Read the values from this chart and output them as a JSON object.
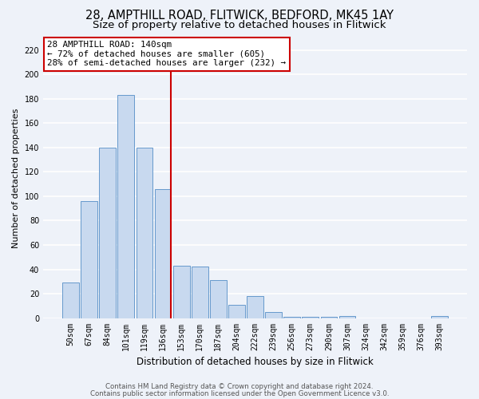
{
  "title": "28, AMPTHILL ROAD, FLITWICK, BEDFORD, MK45 1AY",
  "subtitle": "Size of property relative to detached houses in Flitwick",
  "xlabel": "Distribution of detached houses by size in Flitwick",
  "ylabel": "Number of detached properties",
  "bar_labels": [
    "50sqm",
    "67sqm",
    "84sqm",
    "101sqm",
    "119sqm",
    "136sqm",
    "153sqm",
    "170sqm",
    "187sqm",
    "204sqm",
    "222sqm",
    "239sqm",
    "256sqm",
    "273sqm",
    "290sqm",
    "307sqm",
    "324sqm",
    "342sqm",
    "359sqm",
    "376sqm",
    "393sqm"
  ],
  "bar_values": [
    29,
    96,
    140,
    183,
    140,
    106,
    43,
    42,
    31,
    11,
    18,
    5,
    1,
    1,
    1,
    2,
    0,
    0,
    0,
    0,
    2
  ],
  "bar_color": "#c8d9ef",
  "bar_edge_color": "#6699cc",
  "red_line_color": "#cc0000",
  "red_line_index": 5,
  "annotation_title": "28 AMPTHILL ROAD: 140sqm",
  "annotation_line1": "← 72% of detached houses are smaller (605)",
  "annotation_line2": "28% of semi-detached houses are larger (232) →",
  "annotation_box_color": "#ffffff",
  "annotation_box_edge": "#cc0000",
  "ylim": [
    0,
    230
  ],
  "yticks": [
    0,
    20,
    40,
    60,
    80,
    100,
    120,
    140,
    160,
    180,
    200,
    220
  ],
  "bg_color": "#eef2f9",
  "grid_color": "#ffffff",
  "title_fontsize": 10.5,
  "subtitle_fontsize": 9.5,
  "ylabel_fontsize": 8,
  "xlabel_fontsize": 8.5,
  "tick_fontsize": 7,
  "ann_fontsize": 7.8,
  "footer_fontsize": 6.2,
  "footer1": "Contains HM Land Registry data © Crown copyright and database right 2024.",
  "footer2": "Contains public sector information licensed under the Open Government Licence v3.0."
}
